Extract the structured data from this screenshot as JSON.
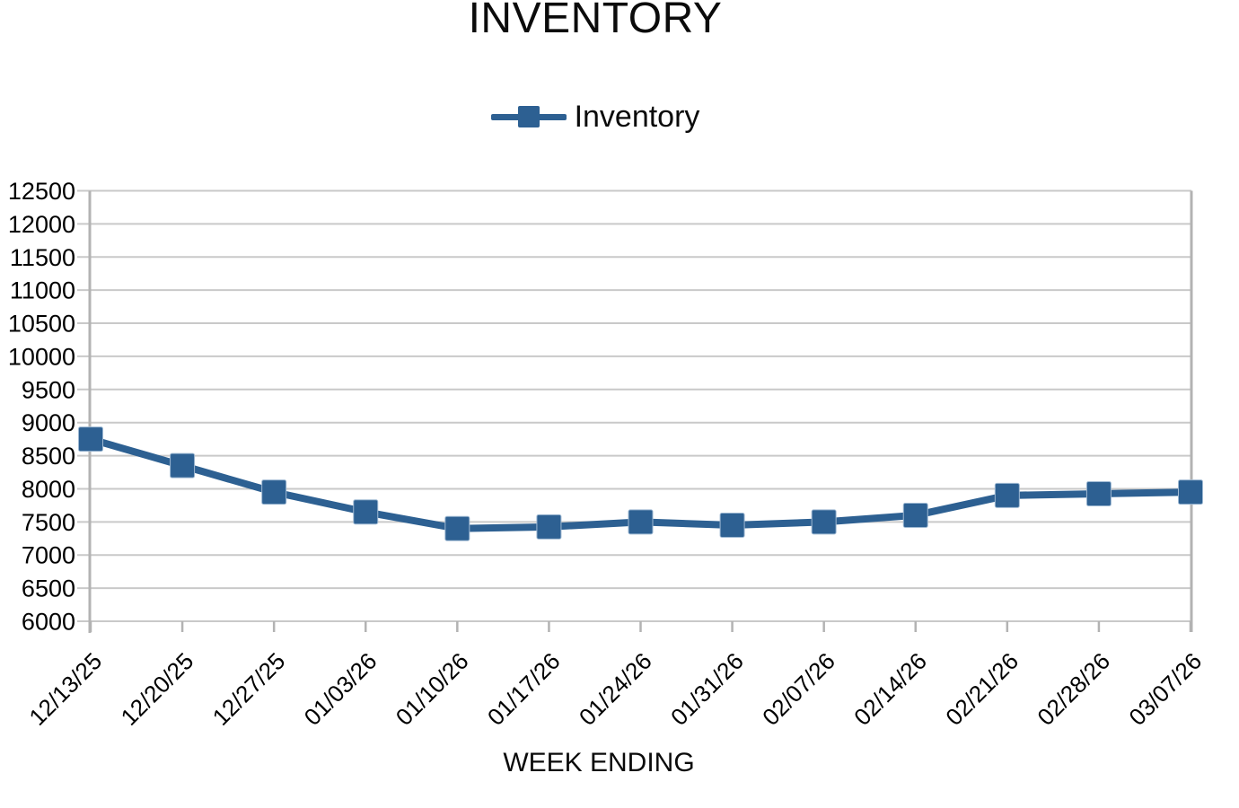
{
  "colors": {
    "series": "#2D6092",
    "marker_edge": "#9DB8D2",
    "gridline": "#C9C9C9",
    "axis": "#B3B3B3",
    "text": "#000000",
    "background": "#FFFFFF"
  },
  "chart_data": {
    "type": "line",
    "title": "INVENTORY",
    "xlabel": "WEEK ENDING",
    "ylabel": "",
    "legend_position": "top",
    "grid": true,
    "marker": "square",
    "x_tick_rotation": 45,
    "ylim": [
      6000,
      12500
    ],
    "ytick_step": 500,
    "categories": [
      "12/13/25",
      "12/20/25",
      "12/27/25",
      "01/03/26",
      "01/10/26",
      "01/17/26",
      "01/24/26",
      "01/31/26",
      "02/07/26",
      "02/14/26",
      "02/21/26",
      "02/28/26",
      "03/07/26"
    ],
    "series": [
      {
        "name": "Inventory",
        "values": [
          8750,
          8350,
          7950,
          7650,
          7400,
          7425,
          7500,
          7450,
          7500,
          7600,
          7900,
          7925,
          7950
        ]
      }
    ]
  }
}
